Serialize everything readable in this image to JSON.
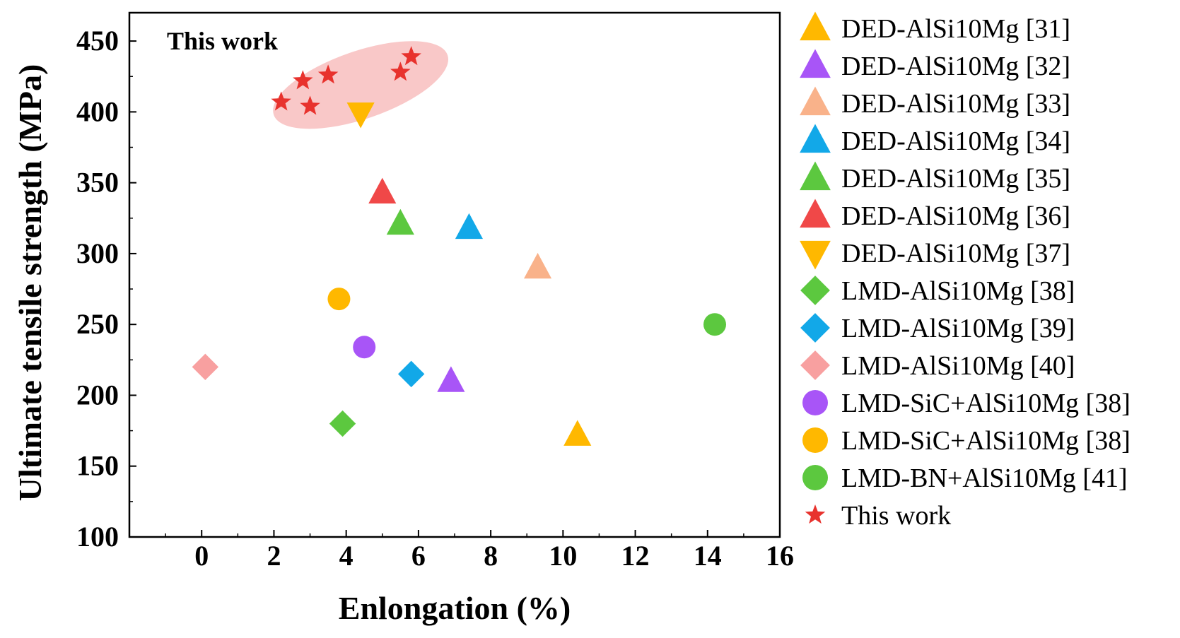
{
  "chart_data": {
    "type": "scatter",
    "title": "",
    "xlabel": "Enlongation (%)",
    "ylabel": "Ultimate tensile strength (MPa)",
    "xlim": [
      -2,
      16
    ],
    "ylim": [
      100,
      470
    ],
    "xticks": [
      0,
      2,
      4,
      6,
      8,
      10,
      12,
      14,
      16
    ],
    "yticks": [
      100,
      150,
      200,
      250,
      300,
      350,
      400,
      450
    ],
    "xtick_labels": [
      "0",
      "2",
      "4",
      "6",
      "8",
      "10",
      "12",
      "14",
      "16"
    ],
    "ytick_labels": [
      "100",
      "150",
      "200",
      "250",
      "300",
      "350",
      "400",
      "450"
    ],
    "annotation": "This work",
    "highlight_ellipse": {
      "center": [
        4.4,
        419
      ],
      "color": "#f7b6b6"
    },
    "series": [
      {
        "name": "DED-AlSi10Mg [31]",
        "marker": "triangle-up",
        "color": "#ffb800",
        "points": [
          [
            10.4,
            172
          ]
        ]
      },
      {
        "name": "DED-AlSi10Mg [32]",
        "marker": "triangle-up",
        "color": "#a855f7",
        "points": [
          [
            6.9,
            210
          ]
        ]
      },
      {
        "name": "DED-AlSi10Mg [33]",
        "marker": "triangle-up",
        "color": "#f9b28a",
        "points": [
          [
            9.3,
            290
          ]
        ]
      },
      {
        "name": "DED-AlSi10Mg [34]",
        "marker": "triangle-up",
        "color": "#12a8e8",
        "points": [
          [
            7.4,
            318
          ]
        ]
      },
      {
        "name": "DED-AlSi10Mg [35]",
        "marker": "triangle-up",
        "color": "#5cc83f",
        "points": [
          [
            5.5,
            321
          ]
        ]
      },
      {
        "name": "DED-AlSi10Mg [36]",
        "marker": "triangle-up",
        "color": "#f04848",
        "points": [
          [
            5.0,
            343
          ]
        ]
      },
      {
        "name": "DED-AlSi10Mg [37]",
        "marker": "triangle-down",
        "color": "#ffb800",
        "points": [
          [
            4.4,
            399
          ]
        ]
      },
      {
        "name": "LMD-AlSi10Mg [38]",
        "marker": "diamond",
        "color": "#5cc83f",
        "points": [
          [
            3.9,
            180
          ]
        ]
      },
      {
        "name": "LMD-AlSi10Mg [39]",
        "marker": "diamond",
        "color": "#12a8e8",
        "points": [
          [
            5.8,
            215
          ]
        ]
      },
      {
        "name": "LMD-AlSi10Mg [40]",
        "marker": "diamond",
        "color": "#f8a0a0",
        "points": [
          [
            0.1,
            220
          ]
        ]
      },
      {
        "name": "LMD-SiC+AlSi10Mg [38]",
        "marker": "circle",
        "color": "#a855f7",
        "points": [
          [
            4.5,
            234
          ]
        ]
      },
      {
        "name": "LMD-SiC+AlSi10Mg [38]",
        "marker": "circle",
        "color": "#ffb800",
        "points": [
          [
            3.8,
            268
          ]
        ]
      },
      {
        "name": "LMD-BN+AlSi10Mg [41]",
        "marker": "circle",
        "color": "#5cc83f",
        "points": [
          [
            14.2,
            250
          ]
        ]
      },
      {
        "name": "This work",
        "marker": "star",
        "color": "#e8322d",
        "points": [
          [
            2.2,
            407
          ],
          [
            2.8,
            422
          ],
          [
            3.0,
            404
          ],
          [
            3.5,
            426
          ],
          [
            5.5,
            428
          ],
          [
            5.8,
            439
          ]
        ]
      }
    ]
  }
}
